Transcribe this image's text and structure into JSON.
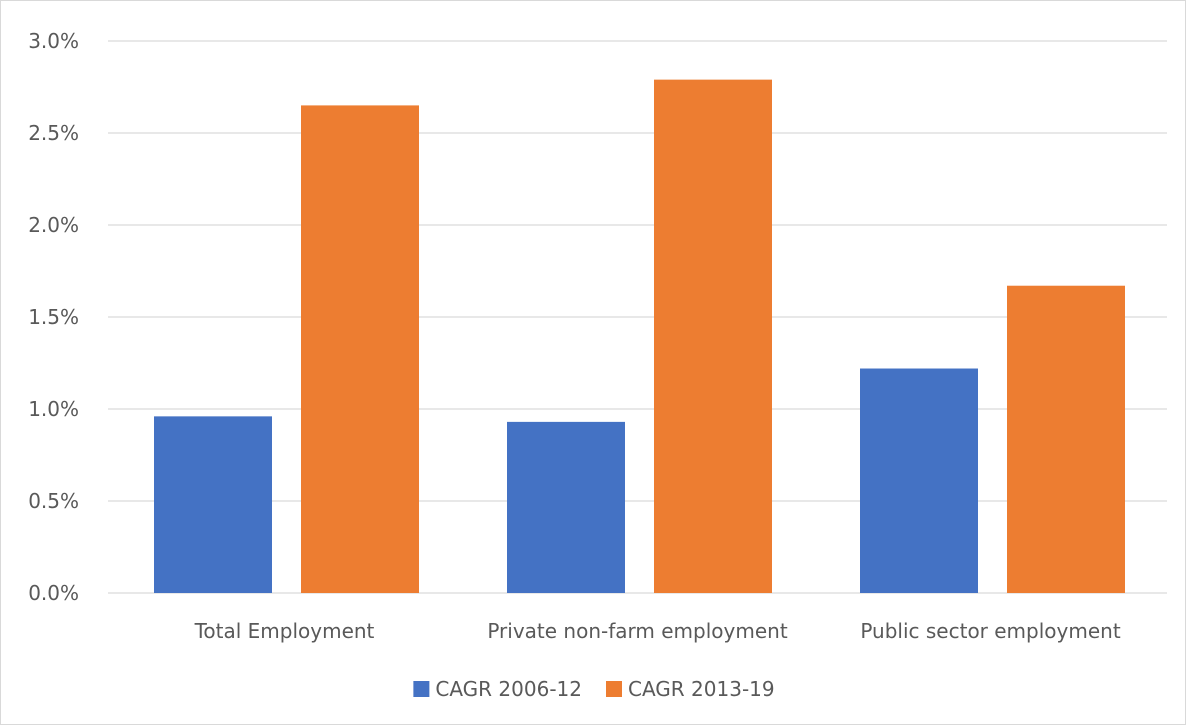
{
  "chart_data": {
    "type": "bar",
    "categories": [
      "Total Employment",
      "Private non-farm employment",
      "Public sector employment"
    ],
    "series": [
      {
        "name": "CAGR 2006-12",
        "values": [
          0.96,
          0.93,
          1.22
        ],
        "color": "#4472C4"
      },
      {
        "name": "CAGR 2013-19",
        "values": [
          2.65,
          2.79,
          1.67
        ],
        "color": "#ED7D31"
      }
    ],
    "title": "",
    "xlabel": "",
    "ylabel": "",
    "ylim": [
      0,
      3.0
    ],
    "yticks": [
      "0.0%",
      "0.5%",
      "1.0%",
      "1.5%",
      "2.0%",
      "2.5%",
      "3.0%"
    ],
    "grid": true,
    "gridline_color": "#d9d9d9",
    "legend_position": "bottom"
  }
}
